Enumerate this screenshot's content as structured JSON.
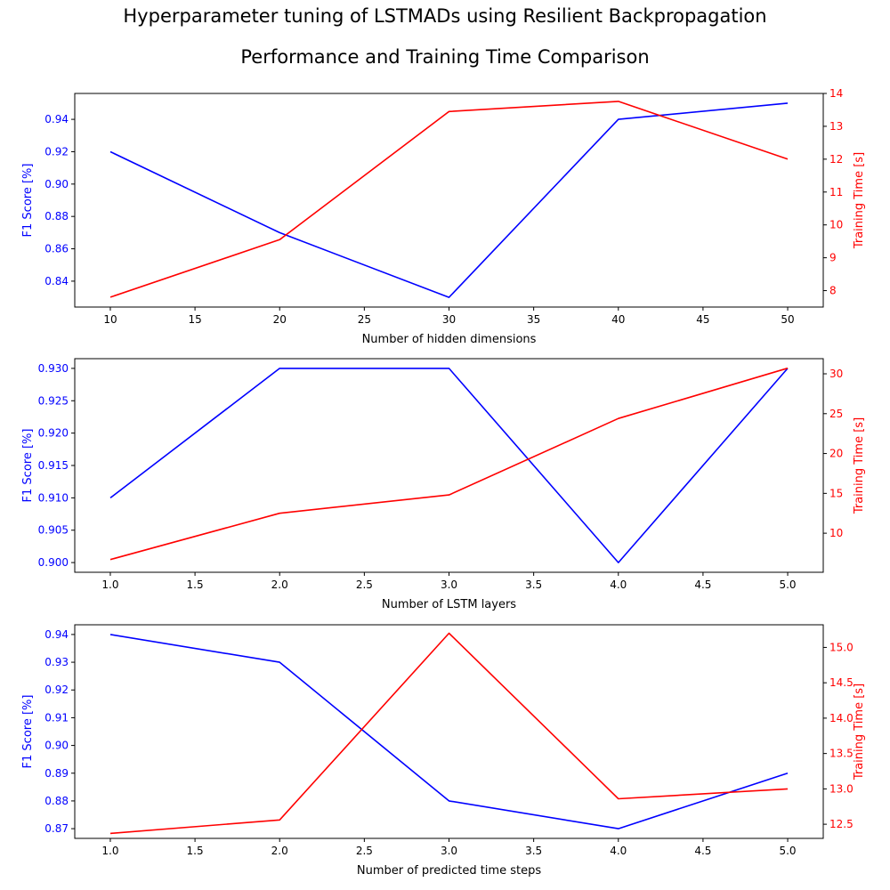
{
  "figure": {
    "title": "Hyperparameter tuning of LSTMADs using Resilient Backpropagation",
    "subtitle": "Performance and Training Time Comparison"
  },
  "colors": {
    "f1": "#0000ff",
    "time": "#ff0000",
    "axis": "#000000"
  },
  "chart_data": [
    {
      "type": "line",
      "xlabel": "Number of hidden dimensions",
      "x": [
        10,
        20,
        30,
        40,
        50
      ],
      "xticks": [
        "10",
        "15",
        "20",
        "25",
        "30",
        "35",
        "40",
        "45",
        "50"
      ],
      "xlim": [
        7.9,
        52.1
      ],
      "left_axis": {
        "label": "F1 Score [%]",
        "ticks": [
          "0.84",
          "0.86",
          "0.88",
          "0.90",
          "0.92",
          "0.94"
        ],
        "ylim": [
          0.824,
          0.956
        ]
      },
      "right_axis": {
        "label": "Training Time [s]",
        "ticks": [
          "8",
          "9",
          "10",
          "11",
          "12",
          "13",
          "14"
        ],
        "ylim": [
          7.5,
          14.0
        ]
      },
      "series": [
        {
          "axis": "left",
          "values": [
            0.92,
            0.87,
            0.83,
            0.94,
            0.95
          ]
        },
        {
          "axis": "right",
          "values": [
            7.8,
            9.55,
            13.45,
            13.76,
            12.0
          ]
        }
      ]
    },
    {
      "type": "line",
      "xlabel": "Number of LSTM layers",
      "x": [
        1,
        2,
        3,
        4,
        5
      ],
      "xticks": [
        "1.0",
        "1.5",
        "2.0",
        "2.5",
        "3.0",
        "3.5",
        "4.0",
        "4.5",
        "5.0"
      ],
      "xlim": [
        0.79,
        5.21
      ],
      "left_axis": {
        "label": "F1 Score [%]",
        "ticks": [
          "0.900",
          "0.905",
          "0.910",
          "0.915",
          "0.920",
          "0.925",
          "0.930"
        ],
        "ylim": [
          0.8985,
          0.9315
        ]
      },
      "right_axis": {
        "label": "Training Time [s]",
        "ticks": [
          "10",
          "15",
          "20",
          "25",
          "30"
        ],
        "ylim": [
          5.1,
          31.9
        ]
      },
      "series": [
        {
          "axis": "left",
          "values": [
            0.91,
            0.93,
            0.93,
            0.9,
            0.93
          ]
        },
        {
          "axis": "right",
          "values": [
            6.7,
            12.5,
            14.8,
            24.4,
            30.7
          ]
        }
      ]
    },
    {
      "type": "line",
      "xlabel": "Number of predicted time steps",
      "x": [
        1,
        2,
        3,
        4,
        5
      ],
      "xticks": [
        "1.0",
        "1.5",
        "2.0",
        "2.5",
        "3.0",
        "3.5",
        "4.0",
        "4.5",
        "5.0"
      ],
      "xlim": [
        0.79,
        5.21
      ],
      "left_axis": {
        "label": "F1 Score [%]",
        "ticks": [
          "0.87",
          "0.88",
          "0.89",
          "0.90",
          "0.91",
          "0.92",
          "0.93",
          "0.94"
        ],
        "ylim": [
          0.8665,
          0.9435
        ]
      },
      "right_axis": {
        "label": "Training Time [s]",
        "ticks": [
          "12.5",
          "13.0",
          "13.5",
          "14.0",
          "14.5",
          "15.0"
        ],
        "ylim": [
          12.3,
          15.32
        ]
      },
      "series": [
        {
          "axis": "left",
          "values": [
            0.94,
            0.93,
            0.88,
            0.87,
            0.89
          ]
        },
        {
          "axis": "right",
          "values": [
            12.37,
            12.56,
            15.2,
            12.86,
            13.0
          ]
        }
      ]
    }
  ]
}
